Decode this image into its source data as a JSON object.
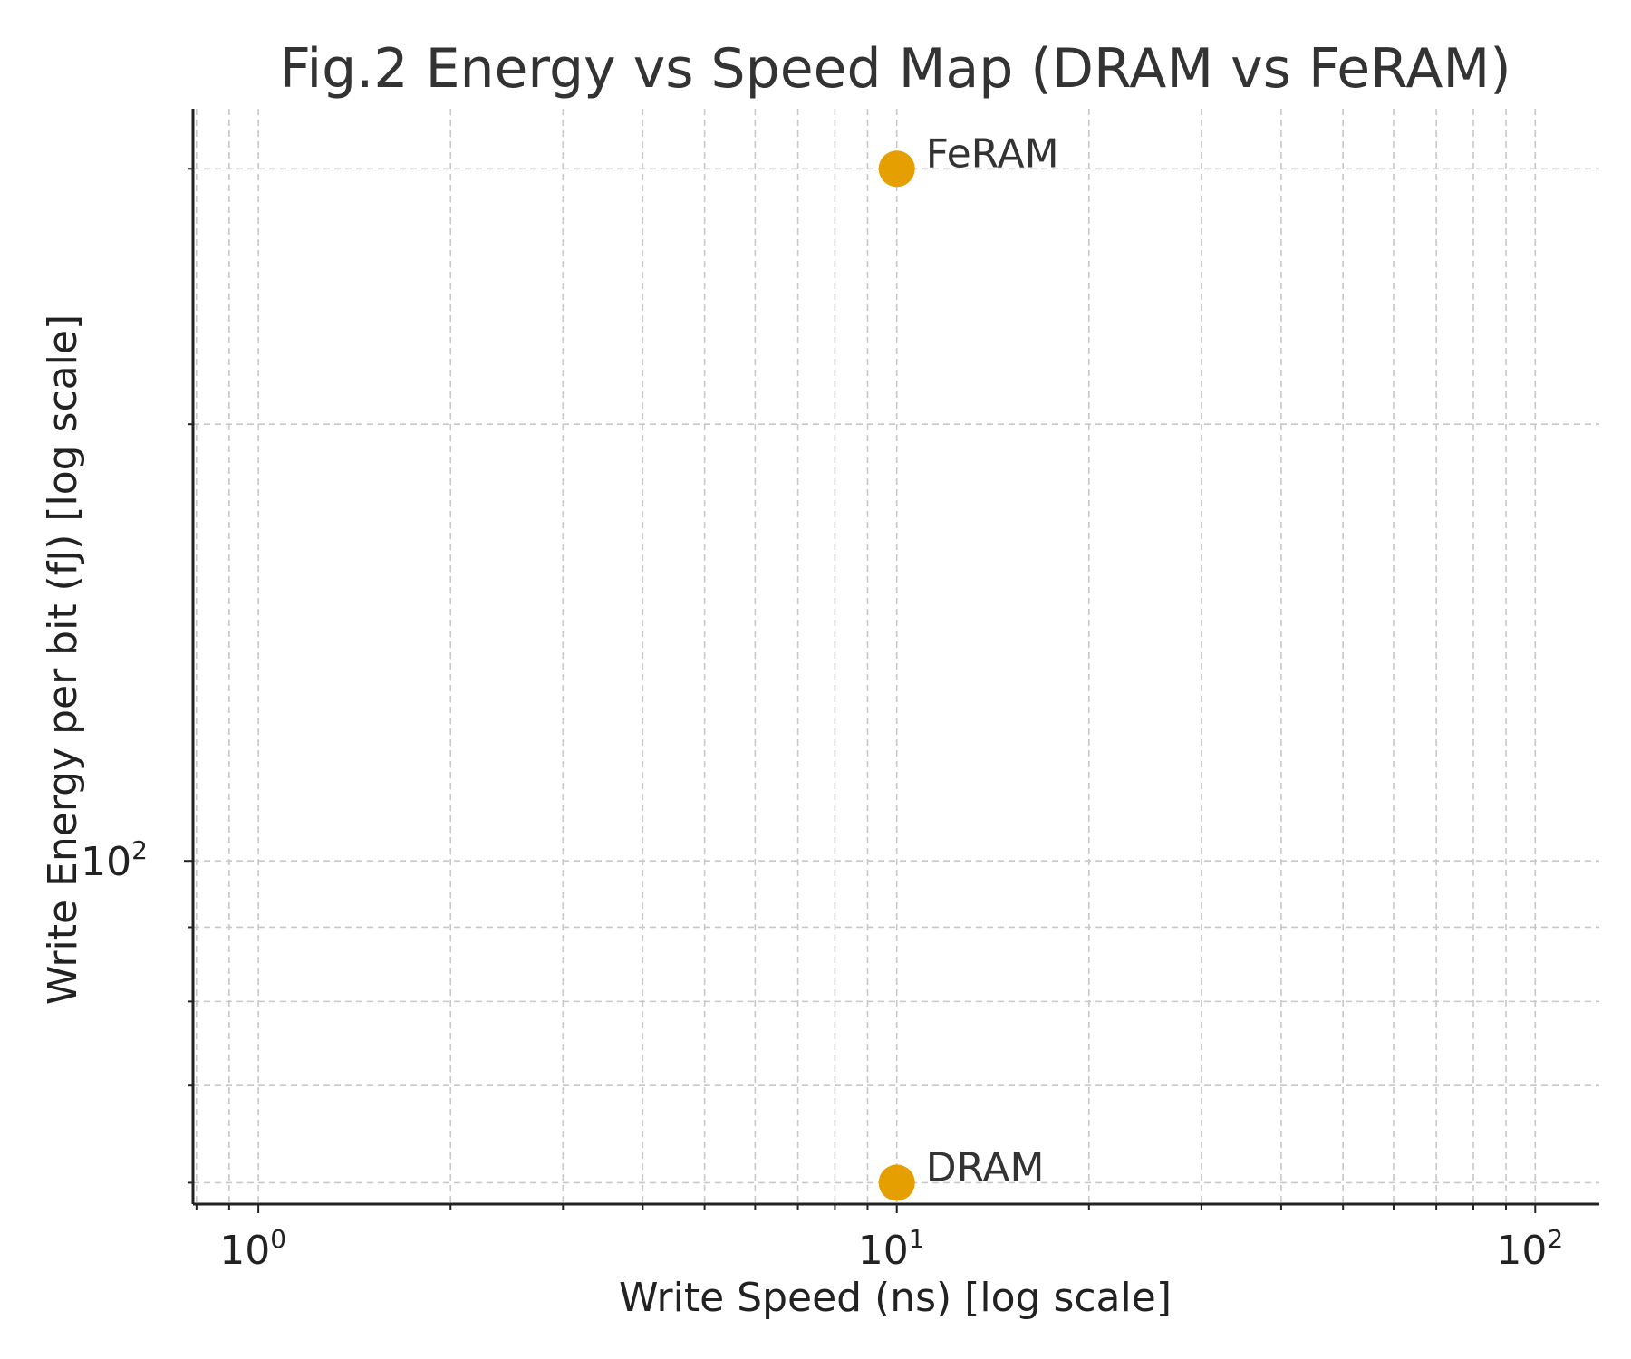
{
  "chart_data": {
    "type": "scatter",
    "title": "Fig.2 Energy vs Speed Map (DRAM vs FeRAM)",
    "xlabel": "Write Speed (ns) [log scale]",
    "ylabel": "Write Energy per bit (fJ) [log scale]",
    "x_scale": "log",
    "y_scale": "log",
    "xlim": [
      0.79,
      126
    ],
    "ylim": [
      58,
      330
    ],
    "x_ticks": [
      {
        "value": 1,
        "base": "10",
        "exp": "0"
      },
      {
        "value": 10,
        "base": "10",
        "exp": "1"
      },
      {
        "value": 100,
        "base": "10",
        "exp": "2"
      }
    ],
    "y_ticks": [
      {
        "value": 100,
        "base": "10",
        "exp": "2"
      }
    ],
    "grid": true,
    "legend": "none",
    "marker_color": "#E69F00",
    "points": [
      {
        "label": "DRAM",
        "x": 10,
        "y": 60
      },
      {
        "label": "FeRAM",
        "x": 10,
        "y": 300
      }
    ]
  }
}
